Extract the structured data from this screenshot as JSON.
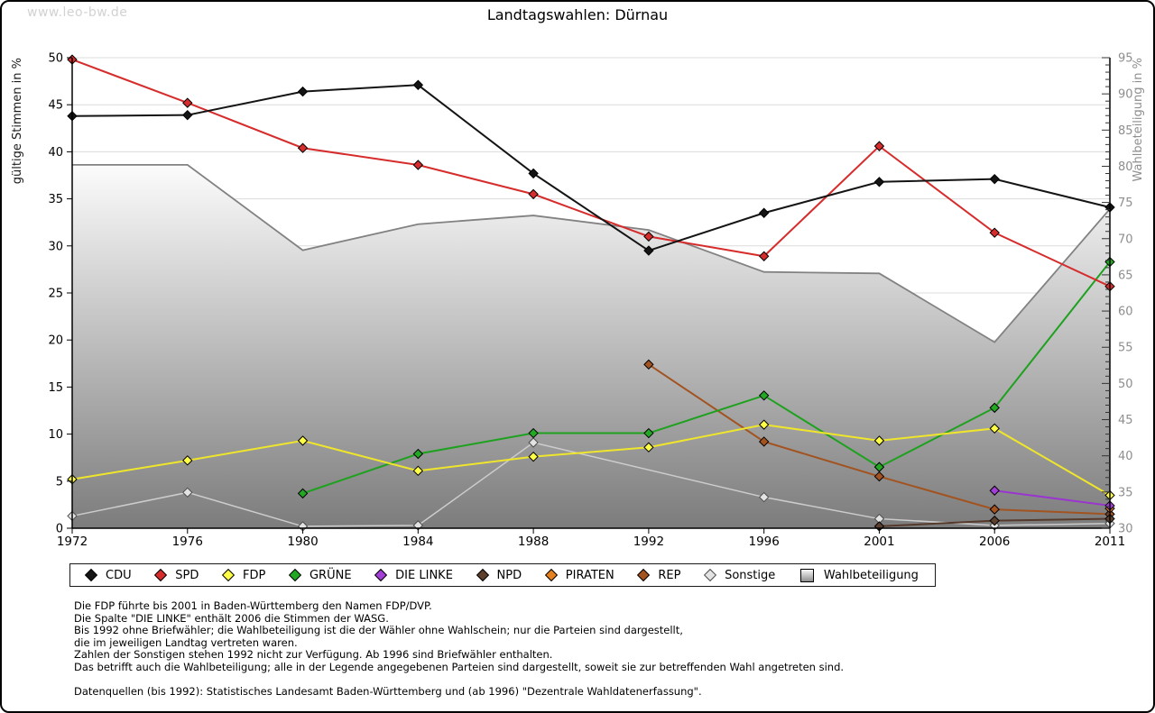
{
  "watermark": "www.leo-bw.de",
  "title": "Landtagswahlen: Dürnau",
  "chart_data": {
    "type": "line",
    "title": "Landtagswahlen: Dürnau",
    "x": [
      1972,
      1976,
      1980,
      1984,
      1988,
      1992,
      1996,
      2001,
      2006,
      2011
    ],
    "left_axis": {
      "label": "gültige Stimmen in %",
      "min": 0,
      "max": 50,
      "tick_step": 5
    },
    "right_axis": {
      "label": "Wahlbeteiligung in %",
      "min": 30,
      "max": 95,
      "tick_step": 5,
      "minor_tick_step": 1,
      "tick_label_color": "#8e8e8e"
    },
    "grid": true,
    "gridline_color": "#dcdcdc",
    "legend_position": "bottom",
    "series": [
      {
        "name": "CDU",
        "axis": "left",
        "color": "#141414",
        "marker_fill": "#141414",
        "values": [
          43.8,
          43.9,
          46.4,
          47.1,
          37.7,
          29.5,
          33.5,
          36.8,
          37.1,
          34.1
        ]
      },
      {
        "name": "SPD",
        "axis": "left",
        "color": "#d62c2c",
        "marker_fill": "#d62c2c",
        "values": [
          49.8,
          45.2,
          40.4,
          38.6,
          35.5,
          31.0,
          28.9,
          40.6,
          31.4,
          25.7
        ]
      },
      {
        "name": "FDP",
        "axis": "left",
        "color": "#efe62b",
        "marker_fill": "#ffff45",
        "values": [
          5.2,
          7.2,
          9.3,
          6.1,
          7.6,
          8.6,
          11.0,
          9.3,
          10.6,
          3.5
        ]
      },
      {
        "name": "GRÜNE",
        "axis": "left",
        "color": "#1ea11e",
        "marker_fill": "#22a822",
        "values": [
          null,
          null,
          3.7,
          7.9,
          10.1,
          10.1,
          14.1,
          6.5,
          12.8,
          28.3
        ]
      },
      {
        "name": "DIE LINKE",
        "axis": "left",
        "color": "#9a35cf",
        "marker_fill": "#a33fd6",
        "values": [
          null,
          null,
          null,
          null,
          null,
          null,
          null,
          null,
          4.0,
          2.4
        ]
      },
      {
        "name": "NPD",
        "axis": "left",
        "color": "#55392a",
        "marker_fill": "#5d3f2d",
        "values": [
          null,
          null,
          null,
          null,
          null,
          null,
          null,
          0.2,
          0.8,
          1.0
        ]
      },
      {
        "name": "PIRATEN",
        "axis": "left",
        "color": "#e5821f",
        "marker_fill": "#e5821f",
        "values": [
          null,
          null,
          null,
          null,
          null,
          null,
          null,
          null,
          null,
          2.1
        ]
      },
      {
        "name": "REP",
        "axis": "left",
        "color": "#a2531f",
        "marker_fill": "#a2531f",
        "values": [
          null,
          null,
          null,
          null,
          null,
          17.4,
          9.2,
          5.5,
          2.0,
          1.5
        ]
      },
      {
        "name": "Sonstige",
        "axis": "left",
        "color": "#cccccc",
        "marker_fill": "#e3e3e3",
        "marker_stroke": "#4d4d4d",
        "values": [
          1.3,
          3.8,
          0.2,
          0.3,
          9.1,
          null,
          3.3,
          1.0,
          0.3,
          0.5
        ]
      },
      {
        "name": "Wahlbeteiligung",
        "type": "area",
        "axis": "right",
        "fill_top": "#fcfcfc",
        "fill_bottom": "#7c7c7c",
        "outline": "#828282",
        "values": [
          80.2,
          80.2,
          68.4,
          72.0,
          73.2,
          71.2,
          65.4,
          65.2,
          55.7,
          74.1
        ]
      }
    ]
  },
  "footnotes": [
    "Die FDP führte bis 2001 in Baden-Württemberg den Namen FDP/DVP.",
    "Die Spalte \"DIE LINKE\" enthält 2006 die Stimmen der WASG.",
    "Bis 1992 ohne Briefwähler; die Wahlbeteiligung ist die der Wähler ohne Wahlschein; nur die Parteien sind dargestellt,",
    "die im jeweiligen Landtag vertreten waren.",
    "Zahlen der Sonstigen stehen 1992 nicht zur Verfügung. Ab 1996 sind Briefwähler enthalten.",
    "Das betrifft auch die Wahlbeteiligung; alle in der Legende angegebenen Parteien sind dargestellt, soweit sie zur betreffenden Wahl angetreten sind.",
    ""
  ],
  "datasource": "Datenquellen (bis 1992): Statistisches Landesamt Baden-Württemberg und (ab 1996) \"Dezentrale Wahldatenerfassung\"."
}
